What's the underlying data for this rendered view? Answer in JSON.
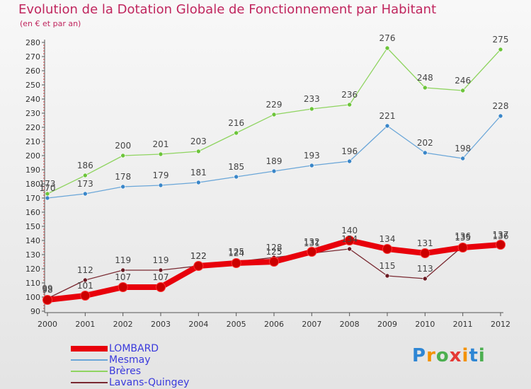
{
  "title": "Evolution de la Dotation Globale de Fonctionnement par Habitant",
  "subtitle": "(en € et par an)",
  "logo": {
    "text": "Proxiti",
    "letters": [
      "P",
      "r",
      "o",
      "x",
      "i",
      "t",
      "i"
    ],
    "colors": [
      "#2e86d4",
      "#f39200",
      "#4caf50",
      "#e53935",
      "#f39200",
      "#2e86d4",
      "#4caf50"
    ]
  },
  "chart_data": {
    "type": "line",
    "title": "Evolution de la Dotation Globale de Fonctionnement par Habitant",
    "subtitle": "(en € et par an)",
    "x": [
      "2000",
      "2001",
      "2002",
      "2003",
      "2004",
      "2005",
      "2006",
      "2007",
      "2008",
      "2009",
      "2010",
      "2011",
      "2012"
    ],
    "ylim": [
      90,
      280
    ],
    "yticks": [
      90,
      100,
      110,
      120,
      130,
      140,
      150,
      160,
      170,
      180,
      190,
      200,
      210,
      220,
      230,
      240,
      250,
      260,
      270,
      280
    ],
    "grid": false,
    "legend_position": "bottom-left",
    "series": [
      {
        "name": "LOMBARD",
        "color": "#e8000b",
        "marker": "#cc0000",
        "values": [
          98,
          101,
          107,
          107,
          122,
          124,
          125,
          132,
          140,
          134,
          131,
          135,
          137
        ]
      },
      {
        "name": "Mesmay",
        "color": "#6aa6d8",
        "marker": "#3a86c8",
        "values": [
          170,
          173,
          178,
          179,
          181,
          185,
          189,
          193,
          196,
          221,
          202,
          198,
          228
        ]
      },
      {
        "name": "Brères",
        "color": "#8fd460",
        "marker": "#6cc43a",
        "values": [
          173,
          186,
          200,
          201,
          203,
          216,
          229,
          233,
          236,
          276,
          248,
          246,
          275
        ]
      },
      {
        "name": "Lavans-Quingey",
        "color": "#7a2a32",
        "marker": "#6a1a22",
        "values": [
          99,
          112,
          119,
          119,
          122,
          125,
          128,
          131,
          134,
          115,
          113,
          136,
          136
        ]
      }
    ]
  }
}
